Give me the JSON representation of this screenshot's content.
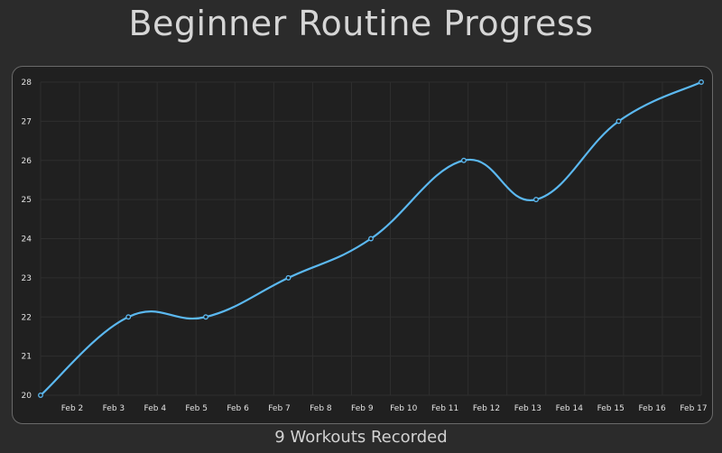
{
  "page": {
    "title": "Beginner Routine Progress",
    "caption": "9 Workouts Recorded"
  },
  "colors": {
    "background": "#2b2b2b",
    "panel": "#202020",
    "grid": "#2e2e2e",
    "line": "#5bb8f0",
    "text": "#e2e2e2"
  },
  "chart_data": {
    "type": "line",
    "title": "Beginner Routine Progress",
    "xlabel": "",
    "ylabel": "",
    "x_ticks": [
      "Feb 2",
      "Feb 3",
      "Feb 4",
      "Feb 5",
      "Feb 6",
      "Feb 7",
      "Feb 8",
      "Feb 9",
      "Feb 10",
      "Feb 11",
      "Feb 12",
      "Feb 13",
      "Feb 14",
      "Feb 15",
      "Feb 16",
      "Feb 17"
    ],
    "xlim": [
      "2024-02-01T12:00",
      "2024-02-17T12:00"
    ],
    "ylim": [
      20,
      28
    ],
    "y_ticks": [
      20,
      21,
      22,
      23,
      24,
      25,
      26,
      27,
      28
    ],
    "grid": true,
    "legend": "none",
    "series": [
      {
        "x": [
          "2024-02-01T12:00",
          "2024-02-03T15:00",
          "2024-02-05T12:00",
          "2024-02-07T12:00",
          "2024-02-09T12:00",
          "2024-02-11T18:00",
          "2024-02-13T12:00",
          "2024-02-15T12:00",
          "2024-02-17T12:00"
        ],
        "values": [
          20,
          22,
          22,
          23,
          24,
          26,
          25,
          27,
          28
        ]
      }
    ]
  }
}
